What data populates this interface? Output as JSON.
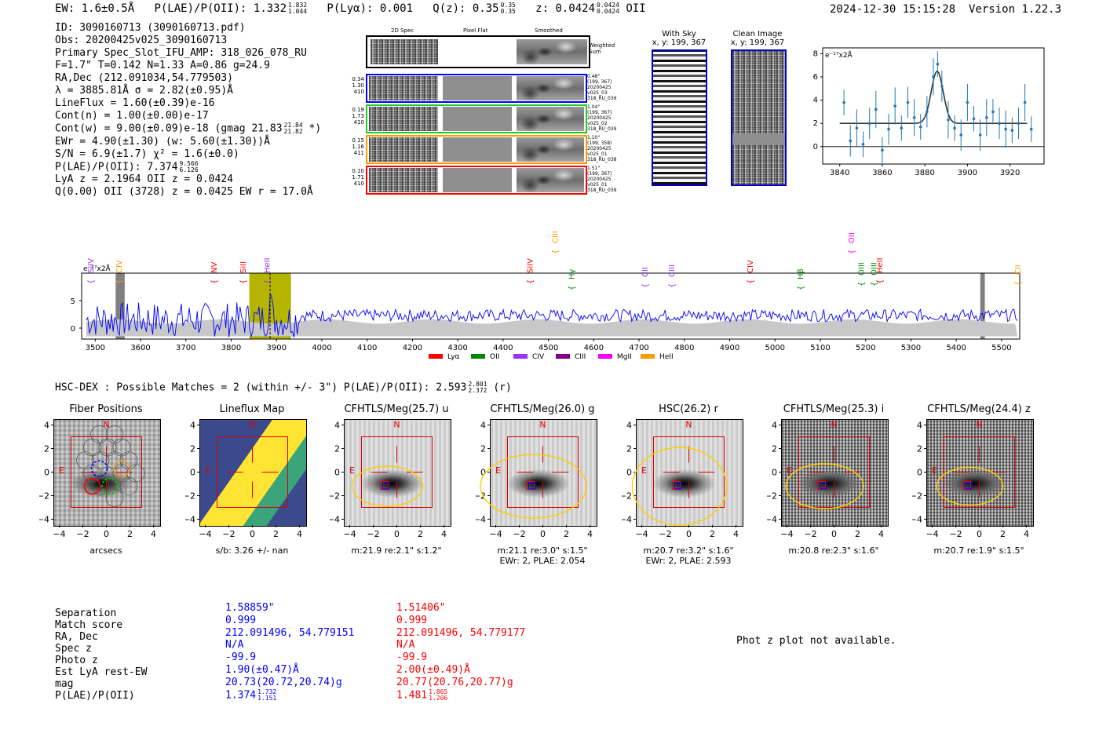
{
  "header": {
    "ew": "EW: 1.6±0.5Å",
    "plae_label": "P(LAE)/P(OII): 1.332",
    "plae_hi": "1.832",
    "plae_lo": "1.044",
    "plya": "P(Lyα): 0.001",
    "qz_label": "Q(z): 0.35",
    "qz_hi": "0.35",
    "qz_lo": "0.35",
    "z_label": "z: 0.0424",
    "z_hi": "0.0424",
    "z_lo": "0.0424",
    "z_line": "OII",
    "timestamp": "2024-12-30 15:15:28",
    "version": "Version 1.22.3"
  },
  "info": {
    "id": "ID: 3090160713 (3090160713.pdf)",
    "obs": "Obs: 20200425v025_3090160713",
    "primary": "Primary Spec_Slot_IFU_AMP: 318_026_078_RU",
    "fwhm": "F=1.7\"  T=0.142  N=1.33  A=0.86  g=24.9",
    "radec": "RA,Dec (212.091034,54.779503)",
    "lambda": "λ = 3885.81Å  σ = 2.82(±0.95)Å",
    "lineflux": "LineFlux = 1.60(±0.39)e-16",
    "contn": "Cont(n) = 1.00(±0.00)e-17",
    "contw": "Cont(w) = 9.00(±0.09)e-18 (gmag 21.83",
    "contw_hi": "21.84",
    "contw_lo": "21.82",
    "contw_end": "*)",
    "ewr": "EWr = 4.90(±1.30) (w: 5.60(±1.30))Å",
    "sn": "S/N = 6.9(±1.7)  χ² = 1.6(±0.0)",
    "plae": "P(LAE)/P(OII): 7.374",
    "plae_hi": "9.566",
    "plae_lo": "6.126",
    "lya_z": "LyA z = 2.1964  OII z = 0.0424",
    "q": "Q(0.00) OII (3728) z = 0.0425  EW r = 17.0Å"
  },
  "spec2d": {
    "col_labels": [
      "2D Spec",
      "Pixel Flat",
      "Smoothed"
    ],
    "weighted_label": "Weighted Sum",
    "rows": [
      {
        "left": [
          "0.34",
          "1.30",
          "410"
        ],
        "right": [
          "0.48\"",
          "(199, 367)",
          "20200425",
          "v025_03",
          "318_RU_039"
        ],
        "color": "#0000ff"
      },
      {
        "left": [
          "0.19",
          "1.73",
          "410"
        ],
        "right": [
          "1.04\"",
          "(199, 367)",
          "20200425",
          "v025_02",
          "318_RU_039"
        ],
        "color": "#22cc22"
      },
      {
        "left": [
          "0.15",
          "1.16",
          "411"
        ],
        "right": [
          "1.10\"",
          "(199, 358)",
          "20200425",
          "v025_01",
          "318_RU_038"
        ],
        "color": "#ff9900"
      },
      {
        "left": [
          "0.10",
          "1.71",
          "410"
        ],
        "right": [
          "1.51\"",
          "(199, 367)",
          "20200425",
          "v025_01",
          "318_RU_039"
        ],
        "color": "#ff0000"
      }
    ]
  },
  "sky": {
    "with_sky": "With Sky",
    "with_sky_xy": "x, y: 199, 367",
    "clean": "Clean Image",
    "clean_xy": "x, y: 199, 367"
  },
  "zoom_chart": {
    "ylabel": "e⁻¹⁷x2Å",
    "yticks": [
      "8",
      "6",
      "4",
      "2",
      "0"
    ],
    "xticks": [
      "3840",
      "3860",
      "3880",
      "3900",
      "3920"
    ]
  },
  "full_spectrum": {
    "ylabel": "e⁻¹⁷x2Å",
    "yticks": [
      "5",
      "0"
    ],
    "xticks": [
      "3500",
      "3600",
      "3700",
      "3800",
      "3900",
      "4000",
      "4100",
      "4200",
      "4300",
      "4400",
      "4500",
      "4600",
      "4700",
      "4800",
      "4900",
      "5000",
      "5100",
      "5200",
      "5300",
      "5400",
      "5500"
    ],
    "line_ids": [
      {
        "label": "SiIV",
        "color": "#9933ff"
      },
      {
        "label": "CIV",
        "color": "#ff9900"
      },
      {
        "label": "NV",
        "color": "#ff0000"
      },
      {
        "label": "SiII",
        "color": "#ff0000"
      },
      {
        "label": "HeII",
        "color": "#9933ff"
      },
      {
        "label": "SiIV",
        "color": "#ff0000"
      },
      {
        "label": "CIII",
        "color": "#ff9900"
      },
      {
        "label": "Hγ",
        "color": "#008800"
      },
      {
        "label": "CII",
        "color": "#9933ff"
      },
      {
        "label": "CIII",
        "color": "#9933ff"
      },
      {
        "label": "CIV",
        "color": "#ff0000"
      },
      {
        "label": "Hβ",
        "color": "#008800"
      },
      {
        "label": "OII",
        "color": "#ff00ff"
      },
      {
        "label": "OIII",
        "color": "#008800"
      },
      {
        "label": "OIII",
        "color": "#008800"
      },
      {
        "label": "HeII",
        "color": "#ff0000"
      },
      {
        "label": "CII",
        "color": "#ff9900"
      }
    ],
    "legend": [
      {
        "label": "Lyα",
        "color": "#ff0000"
      },
      {
        "label": "OII",
        "color": "#008800"
      },
      {
        "label": "CIV",
        "color": "#9933ff"
      },
      {
        "label": "CIII",
        "color": "#800080"
      },
      {
        "label": "MgII",
        "color": "#ff00ff"
      },
      {
        "label": "HeII",
        "color": "#ff9900"
      }
    ]
  },
  "chart_data": [
    {
      "type": "line",
      "title": "",
      "xlabel": "",
      "ylabel": "e-17x2Å",
      "xlim": [
        3832,
        3936
      ],
      "ylim": [
        -1.5,
        8.5
      ],
      "x": [
        3842,
        3845,
        3848,
        3851,
        3854,
        3857,
        3860,
        3863,
        3866,
        3869,
        3872,
        3875,
        3878,
        3881,
        3884,
        3886,
        3888,
        3891,
        3894,
        3897,
        3900,
        3903,
        3906,
        3909,
        3912,
        3915,
        3918,
        3921,
        3924,
        3927,
        3930
      ],
      "y": [
        3.8,
        0.5,
        1.6,
        0.2,
        2.0,
        3.2,
        -0.3,
        1.5,
        3.5,
        1.6,
        3.8,
        2.5,
        1.7,
        3.0,
        6.0,
        7.1,
        5.2,
        2.3,
        1.6,
        1.0,
        3.8,
        2.4,
        1.0,
        2.5,
        3.0,
        2.0,
        1.5,
        1.4,
        2.0,
        3.8,
        1.5
      ],
      "fit": {
        "continuum": 2.0,
        "peak": 6.5,
        "center": 3885.8,
        "sigma": 2.82
      }
    },
    {
      "type": "line",
      "title": "",
      "xlabel": "",
      "ylabel": "e-17x2Å",
      "xlim": [
        3470,
        5540
      ],
      "ylim": [
        -2,
        10
      ],
      "emission_marker": 3885.8,
      "highlight_band": [
        3840,
        3932
      ]
    }
  ],
  "hsc": {
    "title": "HSC-DEX : Possible Matches = 2 (within +/- 3\")  P(LAE)/P(OII): 2.593",
    "hi": "2.801",
    "lo": "2.372",
    "tail": "(r)"
  },
  "cutouts": [
    {
      "title": "Fiber Positions",
      "sub": "arcsecs",
      "sub2": ""
    },
    {
      "title": "Lineflux Map",
      "sub": "s/b: 3.26 +/- nan",
      "sub2": ""
    },
    {
      "title": "CFHTLS/Meg(25.7) u",
      "sub": "m:21.9  re:2.1\"  s:1.2\"",
      "sub2": ""
    },
    {
      "title": "CFHTLS/Meg(26.0) g",
      "sub": "m:21.1  re:3.0\"  s:1.5\"",
      "sub2": "EWr: 2, PLAE: 2.054"
    },
    {
      "title": "HSC(26.2) r",
      "sub": "m:20.7  re:3.2\"  s:1.6\"",
      "sub2": "EWr: 2, PLAE: 2.593"
    },
    {
      "title": "CFHTLS/Meg(25.3) i",
      "sub": "m:20.8  re:2.3\"  s:1.6\"",
      "sub2": ""
    },
    {
      "title": "CFHTLS/Meg(24.4) z",
      "sub": "m:20.7  re:1.9\"  s:1.5\"",
      "sub2": ""
    }
  ],
  "cut_axis": {
    "yticks": [
      "4",
      "2",
      "0",
      "−2",
      "−4"
    ],
    "xticks": [
      "−4",
      "−2",
      "0",
      "2",
      "4"
    ],
    "north": "N",
    "east": "E"
  },
  "match_table": {
    "labels": [
      "Separation",
      "Match score",
      "RA, Dec",
      "Spec z",
      "Photo z",
      "Est LyA rest-EW",
      "mag",
      "P(LAE)/P(OII)"
    ],
    "blue": [
      "1.58859\"",
      "0.999",
      "212.091496, 54.779151",
      "N/A",
      "-99.9",
      "1.90(±0.47)Å",
      "20.73(20.72,20.74)g",
      "1.374"
    ],
    "blue_hi": "1.732",
    "blue_lo": "1.151",
    "red": [
      "1.51406\"",
      "0.999",
      "212.091496, 54.779177",
      "N/A",
      "-99.9",
      "2.00(±0.49)Å",
      "20.77(20.76,20.77)g",
      "1.481"
    ],
    "red_hi": "1.865",
    "red_lo": "1.206"
  },
  "photz": "Phot z plot not available."
}
